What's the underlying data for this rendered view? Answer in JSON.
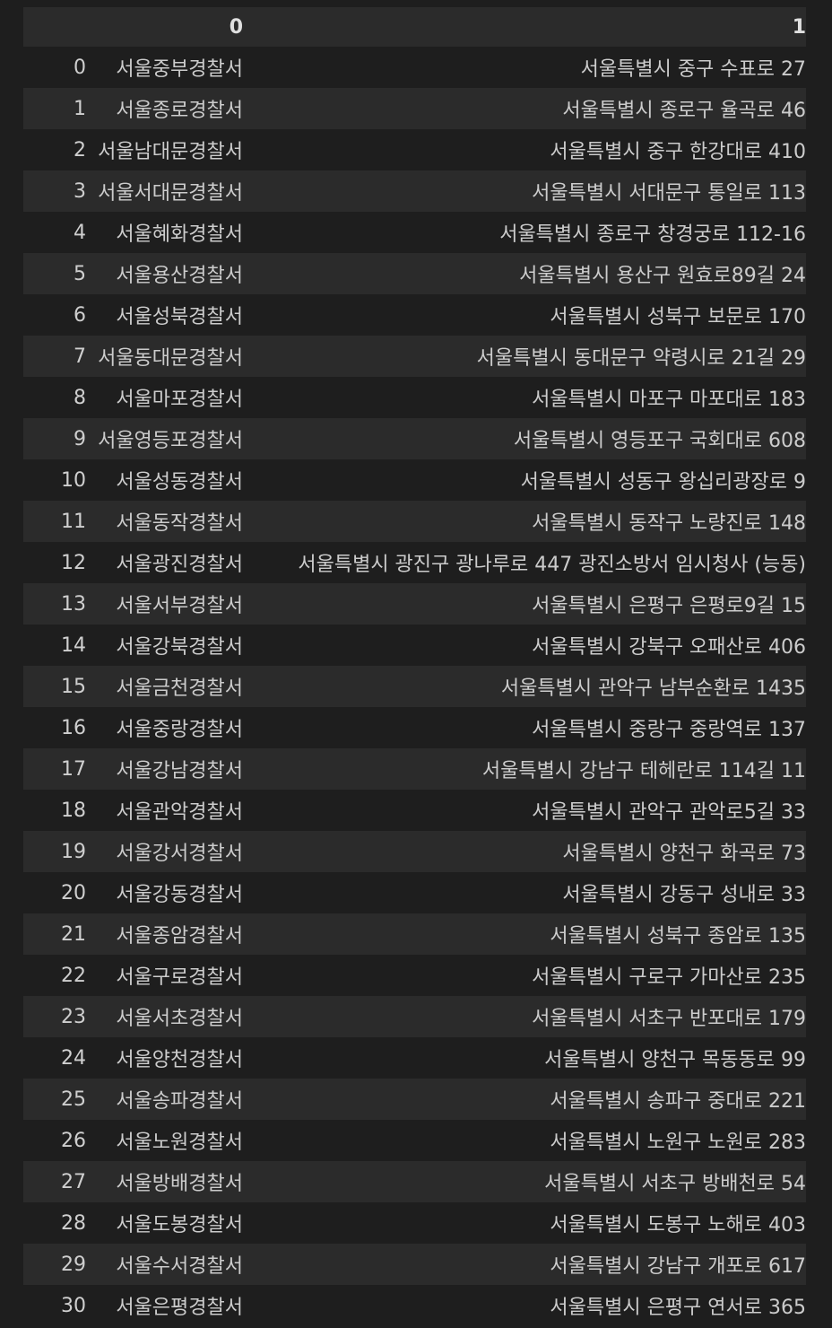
{
  "table": {
    "columns": [
      "",
      "0",
      "1"
    ],
    "rows": [
      {
        "index": "0",
        "name": "서울중부경찰서",
        "address": "서울특별시 중구 수표로 27"
      },
      {
        "index": "1",
        "name": "서울종로경찰서",
        "address": "서울특별시 종로구 율곡로 46"
      },
      {
        "index": "2",
        "name": "서울남대문경찰서",
        "address": "서울특별시 중구 한강대로 410"
      },
      {
        "index": "3",
        "name": "서울서대문경찰서",
        "address": "서울특별시 서대문구 통일로 113"
      },
      {
        "index": "4",
        "name": "서울혜화경찰서",
        "address": "서울특별시 종로구 창경궁로 112-16"
      },
      {
        "index": "5",
        "name": "서울용산경찰서",
        "address": "서울특별시 용산구 원효로89길 24"
      },
      {
        "index": "6",
        "name": "서울성북경찰서",
        "address": "서울특별시 성북구 보문로 170"
      },
      {
        "index": "7",
        "name": "서울동대문경찰서",
        "address": "서울특별시 동대문구 약령시로 21길 29"
      },
      {
        "index": "8",
        "name": "서울마포경찰서",
        "address": "서울특별시 마포구 마포대로 183"
      },
      {
        "index": "9",
        "name": "서울영등포경찰서",
        "address": "서울특별시 영등포구 국회대로 608"
      },
      {
        "index": "10",
        "name": "서울성동경찰서",
        "address": "서울특별시 성동구 왕십리광장로 9"
      },
      {
        "index": "11",
        "name": "서울동작경찰서",
        "address": "서울특별시 동작구 노량진로 148"
      },
      {
        "index": "12",
        "name": "서울광진경찰서",
        "address": "서울특별시 광진구 광나루로 447 광진소방서 임시청사 (능동)"
      },
      {
        "index": "13",
        "name": "서울서부경찰서",
        "address": "서울특별시 은평구 은평로9길 15"
      },
      {
        "index": "14",
        "name": "서울강북경찰서",
        "address": "서울특별시 강북구 오패산로 406"
      },
      {
        "index": "15",
        "name": "서울금천경찰서",
        "address": "서울특별시 관악구 남부순환로 1435"
      },
      {
        "index": "16",
        "name": "서울중랑경찰서",
        "address": "서울특별시 중랑구 중랑역로 137"
      },
      {
        "index": "17",
        "name": "서울강남경찰서",
        "address": "서울특별시 강남구 테헤란로 114길 11"
      },
      {
        "index": "18",
        "name": "서울관악경찰서",
        "address": "서울특별시 관악구 관악로5길 33"
      },
      {
        "index": "19",
        "name": "서울강서경찰서",
        "address": "서울특별시 양천구 화곡로 73"
      },
      {
        "index": "20",
        "name": "서울강동경찰서",
        "address": "서울특별시 강동구 성내로 33"
      },
      {
        "index": "21",
        "name": "서울종암경찰서",
        "address": "서울특별시 성북구 종암로 135"
      },
      {
        "index": "22",
        "name": "서울구로경찰서",
        "address": "서울특별시 구로구 가마산로 235"
      },
      {
        "index": "23",
        "name": "서울서초경찰서",
        "address": "서울특별시 서초구 반포대로 179"
      },
      {
        "index": "24",
        "name": "서울양천경찰서",
        "address": "서울특별시 양천구 목동동로 99"
      },
      {
        "index": "25",
        "name": "서울송파경찰서",
        "address": "서울특별시 송파구 중대로 221"
      },
      {
        "index": "26",
        "name": "서울노원경찰서",
        "address": "서울특별시 노원구 노원로 283"
      },
      {
        "index": "27",
        "name": "서울방배경찰서",
        "address": "서울특별시 서초구 방배천로 54"
      },
      {
        "index": "28",
        "name": "서울도봉경찰서",
        "address": "서울특별시 도봉구 노해로 403"
      },
      {
        "index": "29",
        "name": "서울수서경찰서",
        "address": "서울특별시 강남구 개포로 617"
      },
      {
        "index": "30",
        "name": "서울은평경찰서",
        "address": "서울특별시 은평구 연서로 365"
      }
    ]
  }
}
